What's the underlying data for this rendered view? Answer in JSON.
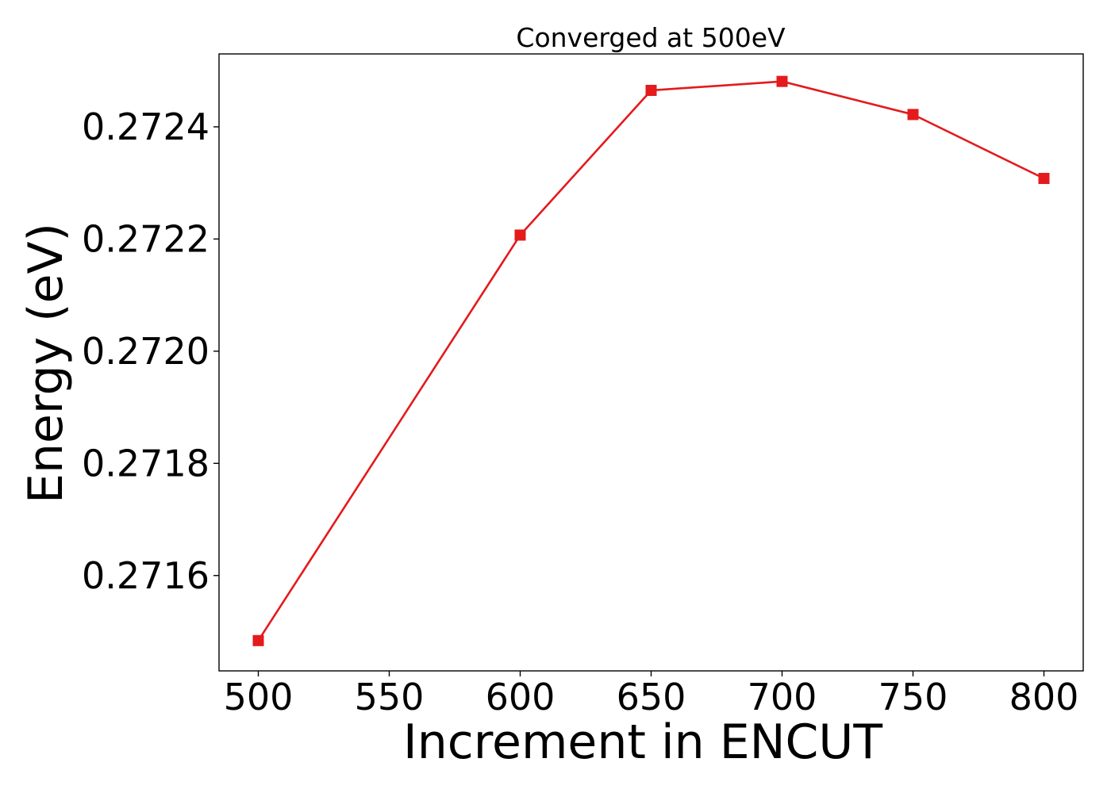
{
  "chart_data": {
    "type": "line",
    "title": "Converged at 500eV",
    "xlabel": "Increment in ENCUT",
    "ylabel": "Energy (eV)",
    "x": [
      500,
      600,
      650,
      700,
      750,
      800
    ],
    "series": [
      {
        "values": [
          0.271484,
          0.272207,
          0.272465,
          0.272481,
          0.272422,
          0.272308
        ],
        "color": "#e41a1c",
        "marker": "square"
      }
    ],
    "xlim": [
      485,
      815
    ],
    "ylim": [
      0.27143,
      0.27253
    ],
    "xticks": [
      500,
      550,
      600,
      650,
      700,
      750,
      800
    ],
    "xtick_labels": [
      "500",
      "550",
      "600",
      "650",
      "700",
      "750",
      "800"
    ],
    "yticks": [
      0.2716,
      0.2718,
      0.272,
      0.2722,
      0.2724
    ],
    "ytick_labels": [
      "0.2716",
      "0.2718",
      "0.2720",
      "0.2722",
      "0.2724"
    ],
    "grid": false,
    "legend": false
  }
}
